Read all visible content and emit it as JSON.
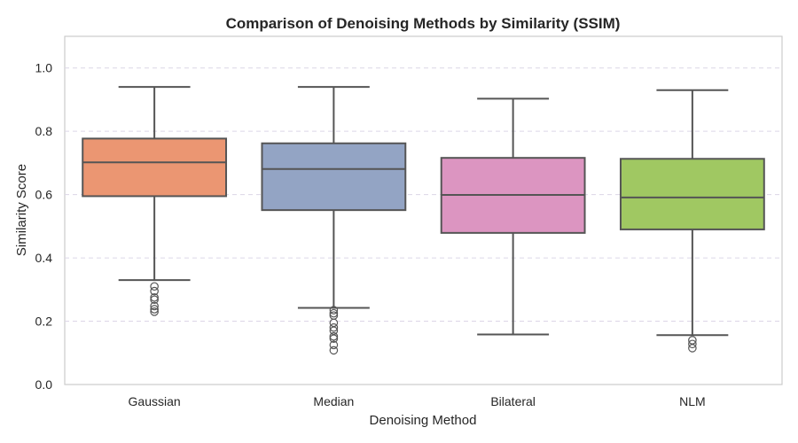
{
  "chart_data": {
    "type": "box",
    "title": "Comparison of Denoising Methods by Similarity (SSIM)",
    "xlabel": "Denoising Method",
    "ylabel": "Similarity Score",
    "ylim": [
      0.0,
      1.1
    ],
    "yticks": [
      0.0,
      0.2,
      0.4,
      0.6,
      0.8,
      1.0
    ],
    "ytick_labels": [
      "0.0",
      "0.2",
      "0.4",
      "0.6",
      "0.8",
      "1.0"
    ],
    "grid": "y-dashed",
    "categories": [
      "Gaussian",
      "Median",
      "Bilateral",
      "NLM"
    ],
    "colors": [
      "#eb9672",
      "#93a4c4",
      "#dc95c1",
      "#a0c862"
    ],
    "line_color": "#555555",
    "boxes": [
      {
        "name": "Gaussian",
        "whisker_low": 0.33,
        "q1": 0.595,
        "median": 0.702,
        "q3": 0.777,
        "whisker_high": 0.94,
        "outliers": [
          0.31,
          0.295,
          0.275,
          0.268,
          0.248,
          0.238,
          0.23
        ]
      },
      {
        "name": "Median",
        "whisker_low": 0.242,
        "q1": 0.551,
        "median": 0.681,
        "q3": 0.762,
        "whisker_high": 0.94,
        "outliers": [
          0.235,
          0.225,
          0.218,
          0.195,
          0.18,
          0.17,
          0.152,
          0.145,
          0.125,
          0.108
        ]
      },
      {
        "name": "Bilateral",
        "whisker_low": 0.158,
        "q1": 0.479,
        "median": 0.599,
        "q3": 0.716,
        "whisker_high": 0.903,
        "outliers": []
      },
      {
        "name": "NLM",
        "whisker_low": 0.156,
        "q1": 0.49,
        "median": 0.591,
        "q3": 0.713,
        "whisker_high": 0.93,
        "outliers": [
          0.14,
          0.128,
          0.115
        ]
      }
    ]
  }
}
